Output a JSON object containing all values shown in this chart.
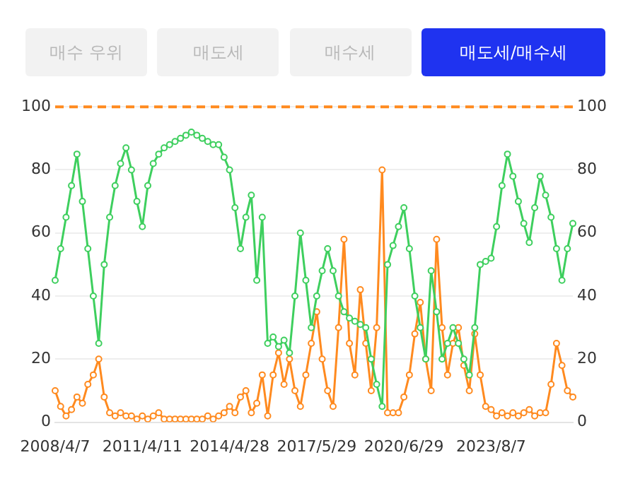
{
  "chart_data": {
    "type": "line",
    "annotations": [
      "매수 우위",
      "매도세",
      "매수세",
      "매도세/매수세"
    ],
    "categories": [
      "2008/4/7",
      null,
      null,
      null,
      null,
      null,
      null,
      null,
      null,
      null,
      null,
      null,
      null,
      null,
      null,
      null,
      "2011/4/11",
      null,
      null,
      null,
      null,
      null,
      null,
      null,
      null,
      null,
      null,
      null,
      null,
      null,
      null,
      null,
      "2014/4/28",
      null,
      null,
      null,
      null,
      null,
      null,
      null,
      null,
      null,
      null,
      null,
      null,
      null,
      null,
      null,
      "2017/5/29",
      null,
      null,
      null,
      null,
      null,
      null,
      null,
      null,
      null,
      null,
      null,
      null,
      null,
      null,
      null,
      "2020/6/29",
      null,
      null,
      null,
      null,
      null,
      null,
      null,
      null,
      null,
      null,
      null,
      null,
      null,
      null,
      null,
      "2023/8/7",
      null,
      null,
      null,
      null,
      null,
      null,
      null,
      null,
      null,
      null,
      null,
      null,
      null,
      null,
      null
    ],
    "series": [
      {
        "color": "#3ecf5e",
        "values": [
          45,
          55,
          65,
          75,
          85,
          70,
          55,
          40,
          25,
          50,
          65,
          75,
          82,
          87,
          80,
          70,
          62,
          75,
          82,
          85,
          87,
          88,
          89,
          90,
          91,
          92,
          91,
          90,
          89,
          88,
          88,
          84,
          80,
          68,
          55,
          65,
          72,
          45,
          65,
          25,
          27,
          24,
          26,
          22,
          40,
          60,
          45,
          30,
          40,
          48,
          55,
          48,
          40,
          35,
          33,
          32,
          31,
          30,
          20,
          12,
          5,
          50,
          56,
          62,
          68,
          55,
          40,
          30,
          20,
          48,
          35,
          20,
          25,
          30,
          25,
          20,
          15,
          30,
          50,
          51,
          52,
          62,
          75,
          85,
          78,
          70,
          63,
          57,
          68,
          78,
          72,
          65,
          55,
          45,
          55,
          63
        ]
      },
      {
        "color": "#ff8a1f",
        "values": [
          10,
          5,
          2,
          4,
          8,
          6,
          12,
          15,
          20,
          8,
          3,
          2,
          3,
          2,
          2,
          1,
          2,
          1,
          2,
          3,
          1,
          1,
          1,
          1,
          1,
          1,
          1,
          1,
          2,
          1,
          2,
          3,
          5,
          3,
          8,
          10,
          3,
          6,
          15,
          2,
          15,
          22,
          12,
          20,
          10,
          5,
          15,
          25,
          35,
          20,
          10,
          5,
          30,
          58,
          25,
          15,
          42,
          25,
          10,
          30,
          80,
          3,
          3,
          3,
          8,
          15,
          28,
          38,
          20,
          10,
          58,
          30,
          15,
          25,
          30,
          18,
          10,
          28,
          15,
          5,
          4,
          2,
          3,
          2,
          3,
          2,
          3,
          4,
          2,
          3,
          3,
          12,
          25,
          18,
          10,
          8
        ]
      }
    ],
    "ylim": [
      0,
      100
    ],
    "yticks": [
      0,
      20,
      40,
      60,
      80,
      100
    ],
    "y2lim": [
      0,
      100
    ],
    "y2ticks": [
      0,
      20,
      40,
      60,
      80,
      100
    ],
    "ref_lines": [
      {
        "axis": "y",
        "value": 100,
        "color": "#ff8a1f",
        "line_style": "dashed"
      }
    ],
    "grid": "y",
    "legend": false,
    "marker": "circle",
    "line_style": "solid"
  }
}
